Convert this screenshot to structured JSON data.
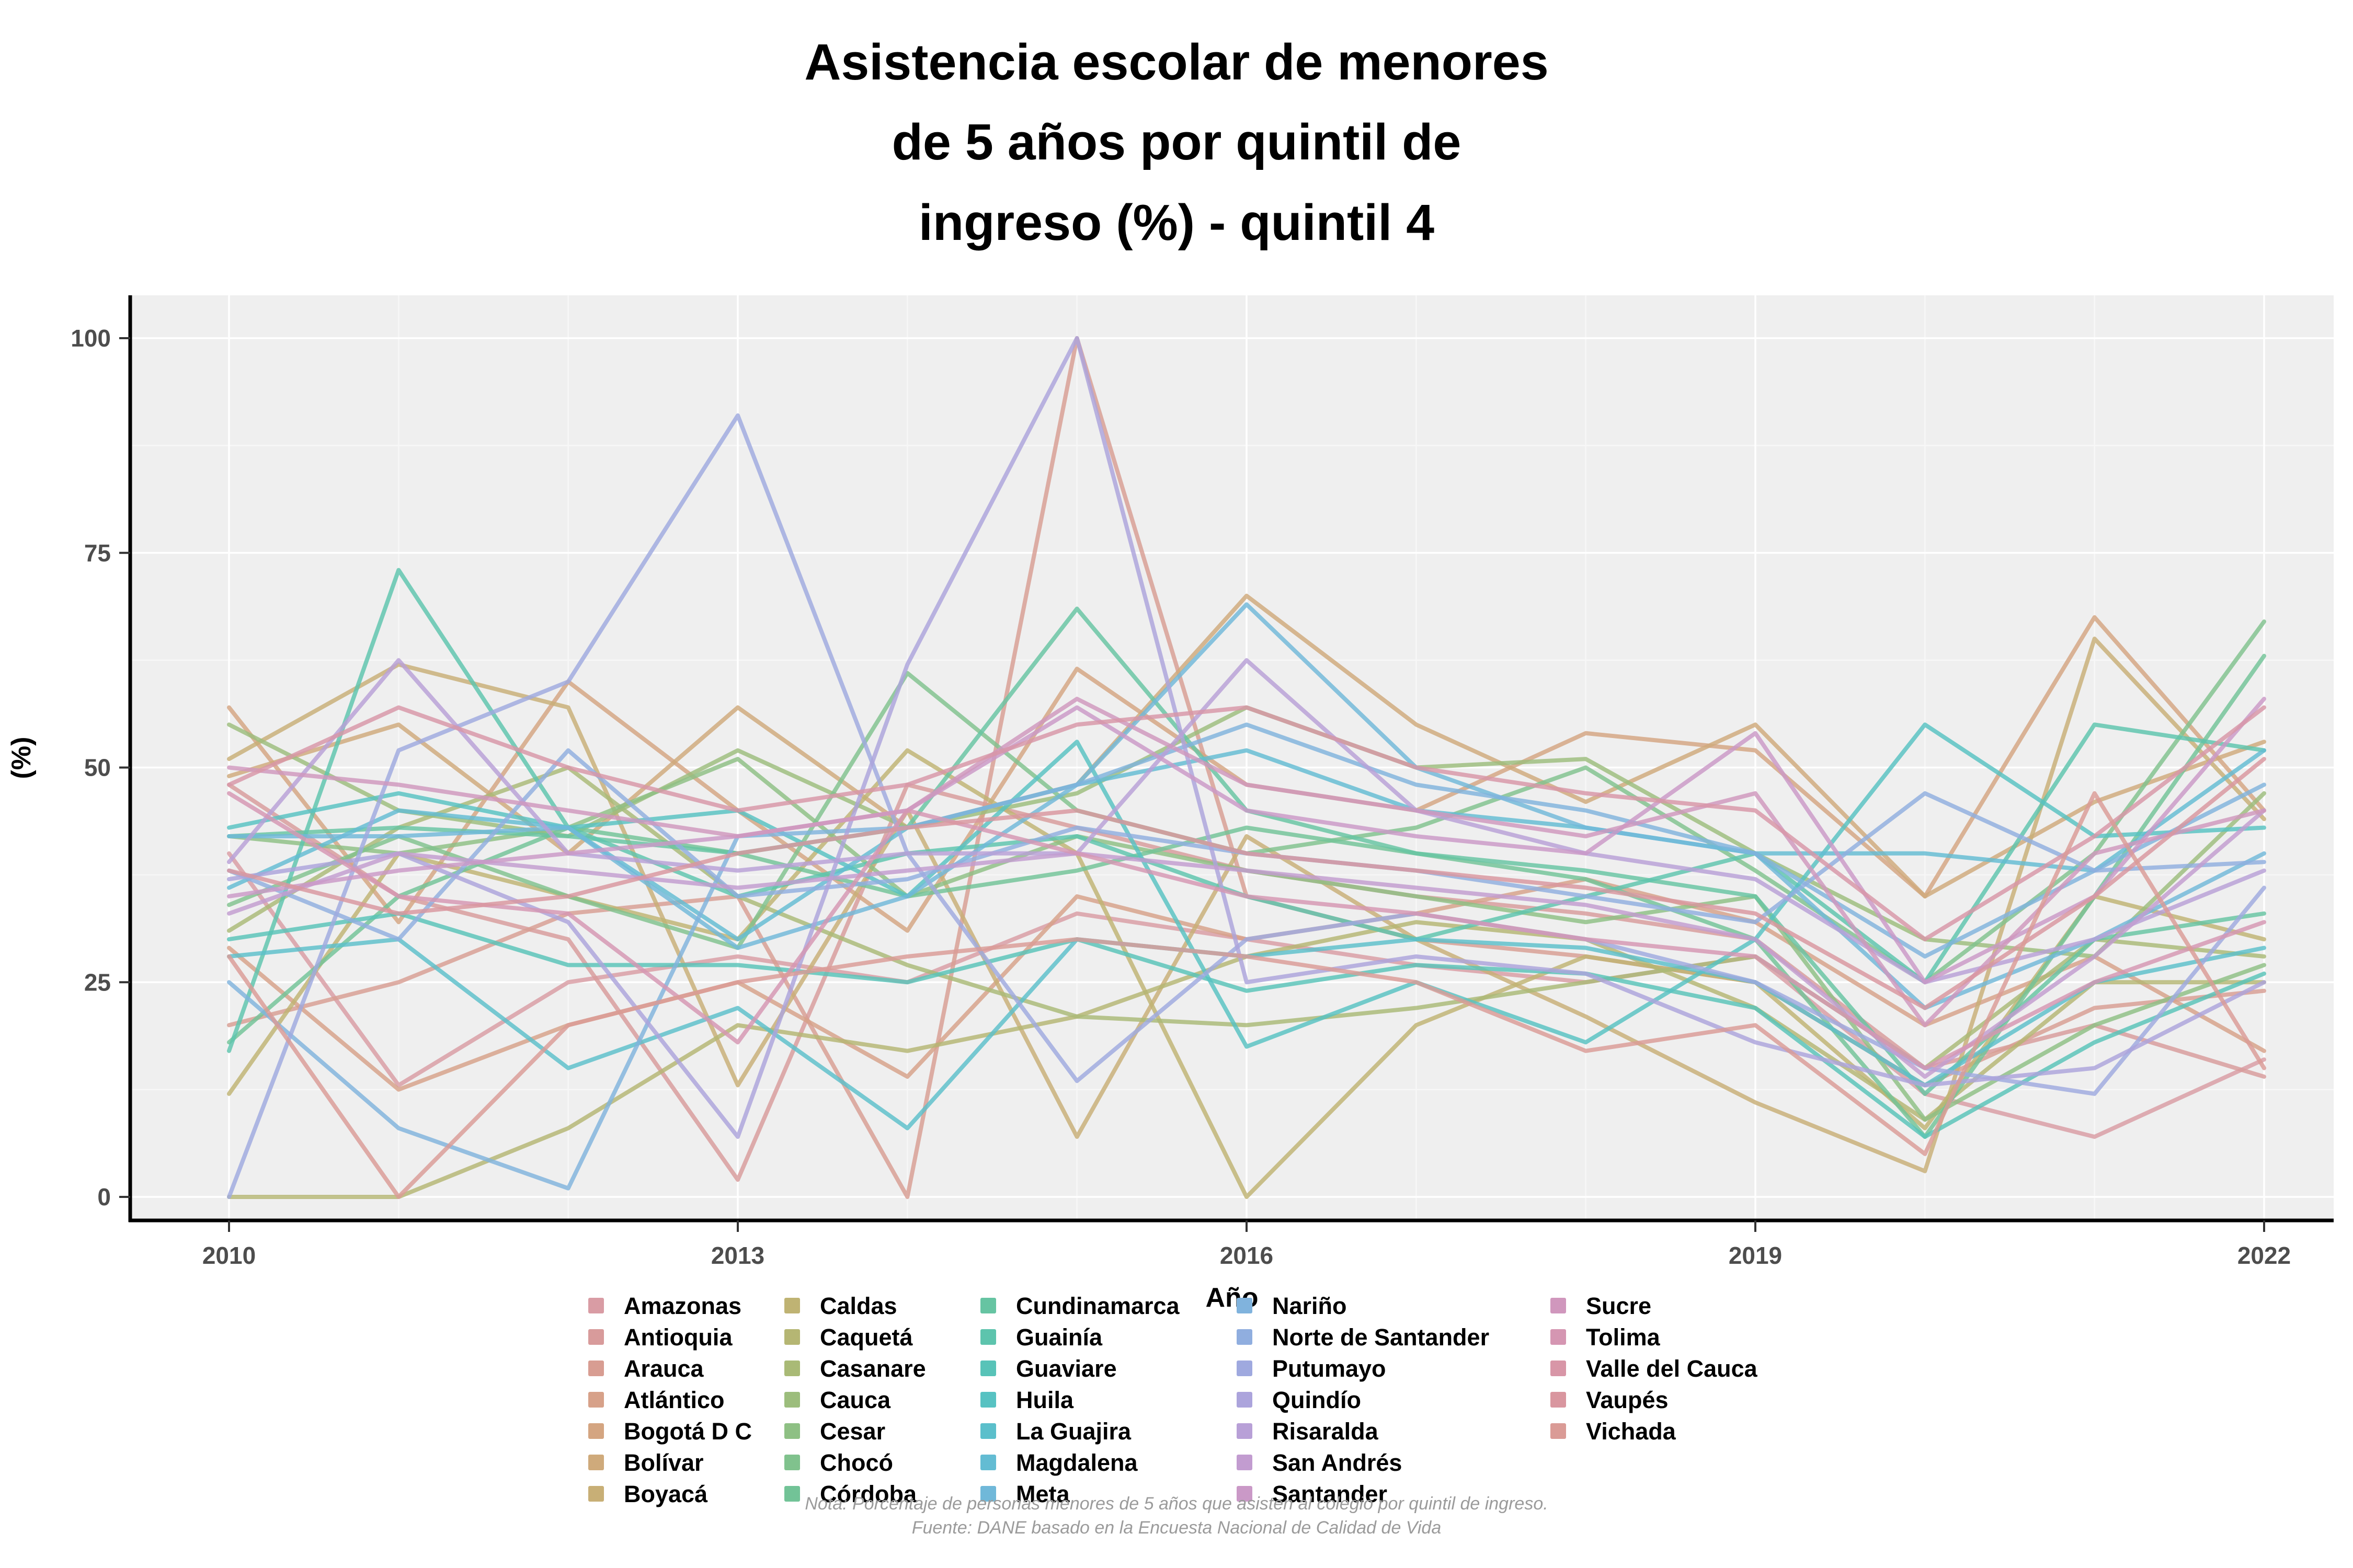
{
  "title": {
    "lines": [
      "Asistencia escolar de menores",
      "de 5 años por quintil de",
      "ingreso (%) - quintil 4"
    ]
  },
  "footnotes": {
    "nota": "Nota: Porcentaje de personas menores de 5 años que asisten al colegio por quintil de ingreso.",
    "fuente": "Fuente: DANE basado en la Encuesta Nacional de Calidad de Vida"
  },
  "style_colors": {
    "panel_background": "#EFEFEF",
    "grid_major": "#FFFFFF",
    "grid_minor": "#F7F7F7",
    "axis_line": "#000000",
    "tick_label": "#4D4D4D",
    "axis_title": "#000000",
    "footnote_text": "#9B9B9B"
  },
  "chart_data": {
    "type": "line",
    "title": "Asistencia escolar de menores de 5 años por quintil de ingreso (%) - quintil 4",
    "xlabel": "Año",
    "ylabel": "(%)",
    "x": [
      2010,
      2011,
      2012,
      2013,
      2014,
      2015,
      2016,
      2017,
      2018,
      2019,
      2020,
      2021,
      2022
    ],
    "xticks": [
      2010,
      2013,
      2016,
      2019,
      2022
    ],
    "yticks": [
      0,
      25,
      50,
      75,
      100
    ],
    "ylim": [
      0,
      100
    ],
    "xlim": [
      2010,
      2022
    ],
    "grid": true,
    "legend_position": "bottom",
    "legend_columns": [
      7,
      7,
      7,
      7,
      5
    ],
    "series": [
      {
        "name": "Amazonas",
        "color": "#D99CA4",
        "values": [
          40,
          13,
          25,
          28,
          25,
          33,
          30,
          27,
          25,
          28,
          12,
          7,
          16
        ]
      },
      {
        "name": "Antioquia",
        "color": "#D89B9B",
        "values": [
          48,
          35,
          30,
          2,
          48,
          43,
          38,
          35,
          33,
          30,
          15,
          20,
          14
        ]
      },
      {
        "name": "Arauca",
        "color": "#D89D92",
        "values": [
          20,
          25,
          33,
          35,
          0,
          100,
          35,
          30,
          28,
          25,
          13,
          22,
          24
        ]
      },
      {
        "name": "Atlántico",
        "color": "#D7A189",
        "values": [
          29,
          12.5,
          20,
          25,
          14,
          35,
          30,
          33,
          37,
          32,
          20,
          28,
          17
        ]
      },
      {
        "name": "Bogotá D C",
        "color": "#D4A581",
        "values": [
          57,
          32,
          60,
          45,
          31,
          61.5,
          48,
          45,
          54,
          52,
          35,
          67.5,
          45
        ]
      },
      {
        "name": "Bolívar",
        "color": "#CFAA7B",
        "values": [
          49,
          55,
          40,
          57,
          43,
          48,
          70,
          55,
          46,
          55,
          35,
          46,
          53
        ]
      },
      {
        "name": "Boyacá",
        "color": "#C8AF76",
        "values": [
          51,
          62,
          57,
          13,
          45,
          7,
          42,
          30,
          21,
          11,
          3,
          65,
          44
        ]
      },
      {
        "name": "Caldas",
        "color": "#BFB373",
        "values": [
          12,
          40,
          35,
          30,
          52,
          40,
          0,
          20,
          28,
          25,
          8,
          35,
          30
        ]
      },
      {
        "name": "Caquetá",
        "color": "#B5B673",
        "values": [
          0,
          0,
          8,
          20,
          17,
          21,
          28,
          32,
          30,
          22,
          9,
          25,
          25
        ]
      },
      {
        "name": "Casanare",
        "color": "#A9BA76",
        "values": [
          31,
          43,
          50,
          35,
          27,
          21,
          20,
          22,
          25,
          28,
          15,
          30,
          28
        ]
      },
      {
        "name": "Cauca",
        "color": "#9CBD7C",
        "values": [
          55,
          45,
          42,
          52,
          43,
          47,
          57,
          50,
          51,
          40,
          30,
          28,
          47
        ]
      },
      {
        "name": "Cesar",
        "color": "#8EC084",
        "values": [
          42,
          40,
          43,
          51,
          35,
          42,
          38,
          35,
          32,
          35,
          9,
          20,
          27
        ]
      },
      {
        "name": "Chocó",
        "color": "#80C28D",
        "values": [
          34,
          42,
          35,
          29,
          61,
          45,
          40,
          43,
          50,
          38,
          25,
          40,
          67
        ]
      },
      {
        "name": "Córdoba",
        "color": "#72C397",
        "values": [
          18,
          35,
          43,
          40,
          35,
          38,
          43,
          40,
          37,
          30,
          7,
          35,
          63
        ]
      },
      {
        "name": "Cundinamarca",
        "color": "#66C4A2",
        "values": [
          42,
          43,
          42,
          40,
          43,
          68.5,
          45,
          40,
          38,
          35,
          12,
          30,
          33
        ]
      },
      {
        "name": "Guainía",
        "color": "#5DC4AD",
        "values": [
          17,
          73,
          43,
          35,
          40,
          42,
          35,
          30,
          35,
          40,
          25,
          55,
          52
        ]
      },
      {
        "name": "Guaviare",
        "color": "#58C3B8",
        "values": [
          30,
          33,
          27,
          27,
          25,
          30,
          24,
          27,
          26,
          22,
          7,
          18,
          26
        ]
      },
      {
        "name": "Huila",
        "color": "#57C2C2",
        "values": [
          43,
          47,
          43,
          45,
          35,
          53,
          17.5,
          25,
          18,
          30,
          55,
          42,
          43
        ]
      },
      {
        "name": "La Guajira",
        "color": "#5BBFCB",
        "values": [
          28,
          30,
          15,
          22,
          8,
          30,
          28,
          30,
          29,
          25,
          13,
          25,
          29
        ]
      },
      {
        "name": "Magdalena",
        "color": "#63BCD3",
        "values": [
          36,
          45,
          43,
          30,
          43,
          48,
          52,
          45,
          43,
          40,
          40,
          38,
          52
        ]
      },
      {
        "name": "Meta",
        "color": "#70B8D9",
        "values": [
          42,
          42,
          43,
          29,
          35,
          48,
          69,
          50,
          43,
          40,
          22,
          30,
          40
        ]
      },
      {
        "name": "Nariño",
        "color": "#80B3DD",
        "values": [
          25,
          8,
          1,
          42,
          43,
          48,
          55,
          48,
          45,
          40,
          28,
          38,
          48
        ]
      },
      {
        "name": "Norte de Santander",
        "color": "#90AEDF",
        "values": [
          38,
          30,
          52,
          35,
          37,
          43,
          40,
          38,
          35,
          32,
          47,
          38,
          39
        ]
      },
      {
        "name": "Putumayo",
        "color": "#9FA9DF",
        "values": [
          0,
          52,
          60,
          91,
          40,
          13.5,
          30,
          33,
          30,
          25,
          15,
          12,
          36
        ]
      },
      {
        "name": "Quindío",
        "color": "#ACA4DC",
        "values": [
          37,
          40,
          32,
          7,
          62,
          100,
          25,
          28,
          26,
          18,
          13,
          15,
          25
        ]
      },
      {
        "name": "Risaralda",
        "color": "#B8A0D7",
        "values": [
          39,
          62.5,
          40,
          38,
          40,
          40,
          62.5,
          45,
          40,
          37,
          25,
          30,
          38
        ]
      },
      {
        "name": "San Andrés",
        "color": "#C29CD0",
        "values": [
          33,
          40,
          38,
          36,
          38,
          40,
          38,
          36,
          34,
          30,
          14,
          28,
          45
        ]
      },
      {
        "name": "Santander",
        "color": "#CA99C7",
        "values": [
          35,
          38,
          40,
          42,
          45,
          57,
          45,
          42,
          40,
          54,
          25,
          35,
          58
        ]
      },
      {
        "name": "Sucre",
        "color": "#D097BD",
        "values": [
          50,
          48,
          45,
          42,
          45,
          58,
          48,
          45,
          42,
          47,
          20,
          40,
          45
        ]
      },
      {
        "name": "Tolima",
        "color": "#D596B2",
        "values": [
          47,
          35,
          33,
          18,
          45,
          40,
          35,
          33,
          30,
          28,
          15,
          25,
          32
        ]
      },
      {
        "name": "Valle del Cauca",
        "color": "#D896A7",
        "values": [
          48,
          57,
          50,
          45,
          48,
          55,
          57,
          50,
          47,
          45,
          30,
          42,
          57
        ]
      },
      {
        "name": "Vaupés",
        "color": "#D9969F",
        "values": [
          38,
          33,
          35,
          40,
          43,
          45,
          40,
          38,
          36,
          33,
          22,
          35,
          51
        ]
      },
      {
        "name": "Vichada",
        "color": "#DA9B96",
        "values": [
          28,
          0,
          20,
          25,
          28,
          30,
          28,
          25,
          17,
          20,
          5,
          47,
          15
        ]
      }
    ]
  }
}
